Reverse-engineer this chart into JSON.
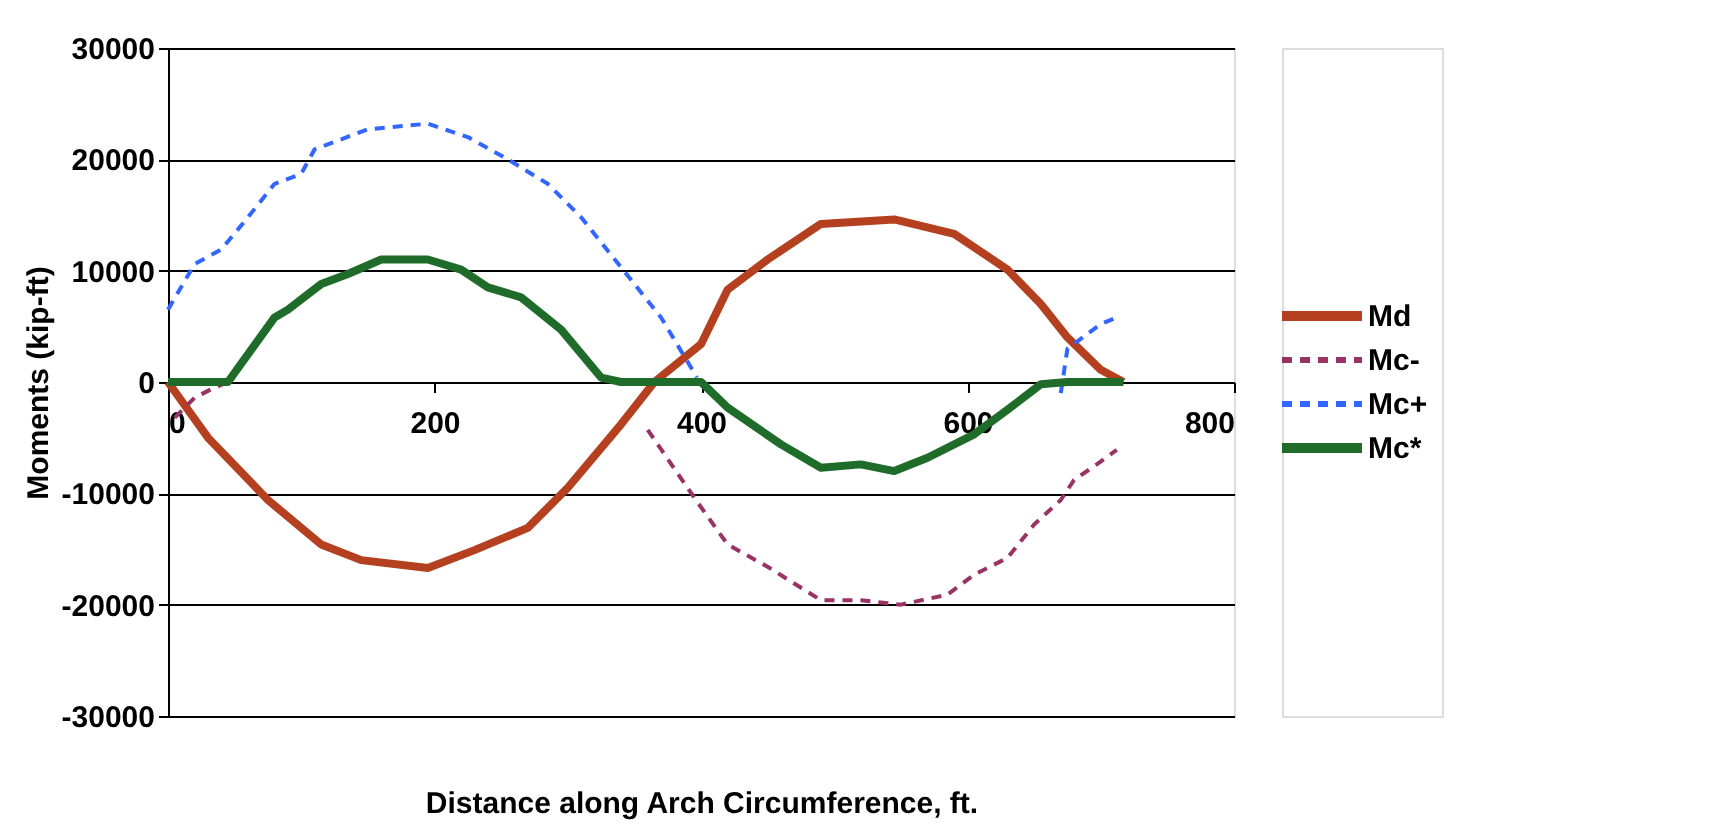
{
  "chart_data": {
    "type": "line",
    "xlabel": "Distance along Arch Circumference, ft.",
    "ylabel": "Moments (kip-ft)",
    "xlim": [
      0,
      800
    ],
    "xticks": [
      0,
      200,
      400,
      600,
      800
    ],
    "ylim": [
      -30000,
      30000
    ],
    "yticks": [
      -30000,
      -20000,
      -10000,
      0,
      10000,
      20000,
      30000
    ],
    "grid": "y",
    "legend": "right",
    "marker": "none",
    "series": [
      {
        "name": "Md",
        "color": "#b5401f",
        "line_style": "solid",
        "x": [
          0,
          30,
          75,
          115,
          145,
          195,
          230,
          270,
          300,
          340,
          365,
          400,
          420,
          450,
          490,
          545,
          590,
          630,
          655,
          675,
          700,
          717
        ],
        "values": [
          0,
          -5000,
          -10600,
          -14600,
          -16000,
          -16700,
          -15100,
          -13100,
          -9500,
          -3800,
          0,
          3400,
          8300,
          11000,
          14200,
          14600,
          13300,
          10100,
          7000,
          4000,
          1100,
          0
        ]
      },
      {
        "name": "Mc-",
        "color": "#993366",
        "line_style": "dashed",
        "x": [
          5,
          20,
          35,
          45,
          335,
          360,
          395,
          420,
          450,
          490,
          520,
          550,
          585,
          605,
          630,
          650,
          670,
          680,
          697,
          712
        ],
        "values": [
          -3200,
          -1400,
          -500,
          0,
          null,
          -4300,
          -10400,
          -14600,
          -16600,
          -19600,
          -19600,
          -20000,
          -19100,
          -17300,
          -15800,
          -12800,
          -10600,
          -8800,
          -7400,
          -6100
        ]
      },
      {
        "name": "Mc+",
        "color": "#3366ff",
        "line_style": "dashed",
        "x": [
          0,
          20,
          40,
          60,
          80,
          100,
          110,
          150,
          195,
          225,
          255,
          285,
          310,
          340,
          370,
          397,
          420,
          670,
          675,
          700,
          712
        ],
        "values": [
          6500,
          10600,
          11900,
          14800,
          17800,
          18700,
          20900,
          22700,
          23200,
          22000,
          20000,
          17800,
          14800,
          10300,
          5800,
          400,
          null,
          -1000,
          3000,
          5200,
          5800
        ]
      },
      {
        "name": "Mc*",
        "color": "#1e6b2a",
        "line_style": "solid",
        "x": [
          0,
          45,
          80,
          90,
          115,
          135,
          160,
          195,
          220,
          240,
          265,
          295,
          325,
          340,
          400,
          420,
          460,
          490,
          520,
          545,
          570,
          605,
          630,
          655,
          675,
          717
        ],
        "values": [
          0,
          0,
          5800,
          6500,
          8800,
          9700,
          11000,
          11000,
          10100,
          8500,
          7600,
          4700,
          400,
          0,
          0,
          -2300,
          -5600,
          -7700,
          -7400,
          -8000,
          -6800,
          -4700,
          -2500,
          -200,
          0,
          0
        ]
      }
    ]
  }
}
